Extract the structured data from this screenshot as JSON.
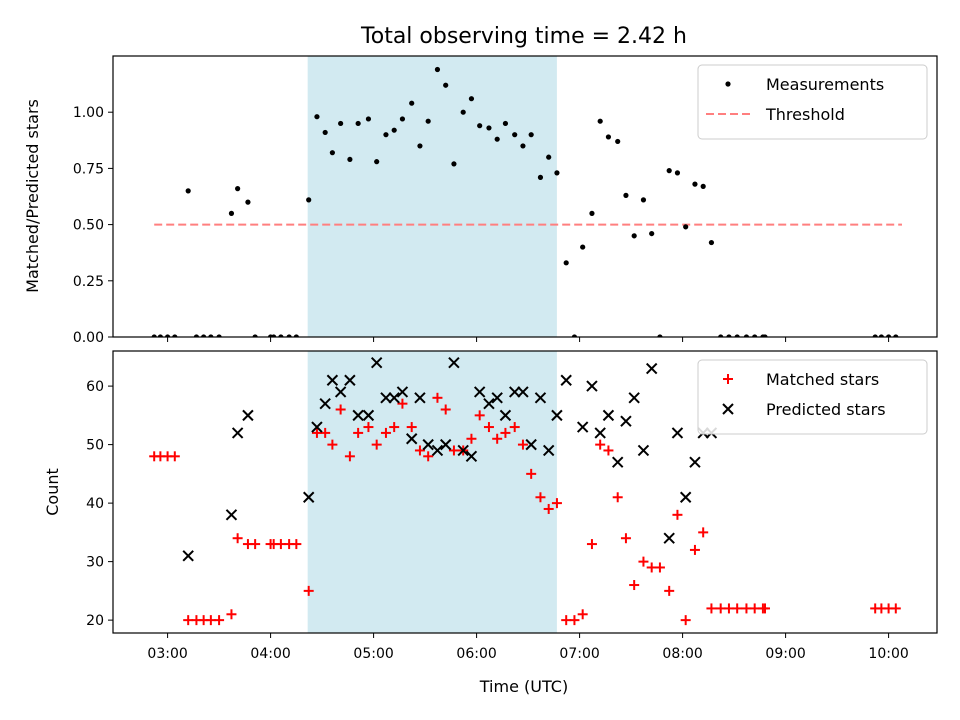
{
  "figure": {
    "title": "Total observing time = 2.42 h",
    "xlabel": "Time (UTC)",
    "x_ticks": [
      "03:00",
      "04:00",
      "05:00",
      "06:00",
      "07:00",
      "08:00",
      "09:00",
      "10:00"
    ],
    "x_tick_values": [
      3,
      4,
      5,
      6,
      7,
      8,
      9,
      10
    ],
    "xlim": [
      2.47,
      10.47
    ],
    "shaded_span": [
      4.36,
      6.78
    ],
    "shade_color": "#add8e6"
  },
  "chart_data": [
    {
      "type": "scatter",
      "ylabel": "Matched/Predicted stars",
      "ylim": [
        0,
        1.25
      ],
      "y_ticks": [
        "0.00",
        "0.25",
        "0.50",
        "0.75",
        "1.00"
      ],
      "y_tick_values": [
        0,
        0.25,
        0.5,
        0.75,
        1.0
      ],
      "legend_placement": "top-right",
      "threshold": {
        "name": "Threshold",
        "y": 0.5,
        "x_range": [
          2.87,
          10.13
        ],
        "color": "#ff7f7f"
      },
      "series": [
        {
          "name": "Measurements",
          "color": "#000000",
          "points": [
            [
              2.87,
              0
            ],
            [
              2.93,
              0
            ],
            [
              3.0,
              0
            ],
            [
              3.07,
              0
            ],
            [
              3.2,
              0.65
            ],
            [
              3.28,
              0
            ],
            [
              3.35,
              0
            ],
            [
              3.42,
              0
            ],
            [
              3.5,
              0
            ],
            [
              3.62,
              0.55
            ],
            [
              3.68,
              0.66
            ],
            [
              3.78,
              0.6
            ],
            [
              3.85,
              0
            ],
            [
              4.0,
              0
            ],
            [
              4.03,
              0
            ],
            [
              4.1,
              0
            ],
            [
              4.18,
              0
            ],
            [
              4.25,
              0
            ],
            [
              4.37,
              0.61
            ],
            [
              4.45,
              0.98
            ],
            [
              4.53,
              0.91
            ],
            [
              4.6,
              0.82
            ],
            [
              4.68,
              0.95
            ],
            [
              4.77,
              0.79
            ],
            [
              4.85,
              0.95
            ],
            [
              4.95,
              0.97
            ],
            [
              5.03,
              0.78
            ],
            [
              5.12,
              0.9
            ],
            [
              5.2,
              0.92
            ],
            [
              5.28,
              0.97
            ],
            [
              5.37,
              1.04
            ],
            [
              5.45,
              0.85
            ],
            [
              5.53,
              0.96
            ],
            [
              5.62,
              1.19
            ],
            [
              5.7,
              1.12
            ],
            [
              5.78,
              0.77
            ],
            [
              5.87,
              1.0
            ],
            [
              5.95,
              1.06
            ],
            [
              6.03,
              0.94
            ],
            [
              6.12,
              0.93
            ],
            [
              6.2,
              0.88
            ],
            [
              6.28,
              0.95
            ],
            [
              6.37,
              0.9
            ],
            [
              6.45,
              0.85
            ],
            [
              6.53,
              0.9
            ],
            [
              6.62,
              0.71
            ],
            [
              6.7,
              0.8
            ],
            [
              6.78,
              0.73
            ],
            [
              6.87,
              0.33
            ],
            [
              6.95,
              0
            ],
            [
              7.03,
              0.4
            ],
            [
              7.12,
              0.55
            ],
            [
              7.2,
              0.96
            ],
            [
              7.28,
              0.89
            ],
            [
              7.37,
              0.87
            ],
            [
              7.45,
              0.63
            ],
            [
              7.53,
              0.45
            ],
            [
              7.62,
              0.61
            ],
            [
              7.7,
              0.46
            ],
            [
              7.78,
              0
            ],
            [
              7.87,
              0.74
            ],
            [
              7.95,
              0.73
            ],
            [
              8.03,
              0.49
            ],
            [
              8.12,
              0.68
            ],
            [
              8.2,
              0.67
            ],
            [
              8.28,
              0.42
            ],
            [
              8.37,
              0
            ],
            [
              8.45,
              0
            ],
            [
              8.53,
              0
            ],
            [
              8.62,
              0
            ],
            [
              8.7,
              0
            ],
            [
              8.78,
              0
            ],
            [
              8.8,
              0
            ],
            [
              9.87,
              0
            ],
            [
              9.93,
              0
            ],
            [
              10.0,
              0
            ],
            [
              10.07,
              0
            ]
          ]
        }
      ]
    },
    {
      "type": "scatter",
      "ylabel": "Count",
      "ylim": [
        17.8,
        66
      ],
      "y_ticks": [
        "20",
        "30",
        "40",
        "50",
        "60"
      ],
      "y_tick_values": [
        20,
        30,
        40,
        50,
        60
      ],
      "legend_placement": "top-right",
      "series": [
        {
          "name": "Matched stars",
          "marker": "plus",
          "color": "#ff0000",
          "points": [
            [
              2.87,
              48
            ],
            [
              2.93,
              48
            ],
            [
              3.0,
              48
            ],
            [
              3.07,
              48
            ],
            [
              3.2,
              20
            ],
            [
              3.28,
              20
            ],
            [
              3.35,
              20
            ],
            [
              3.42,
              20
            ],
            [
              3.5,
              20
            ],
            [
              3.62,
              21
            ],
            [
              3.68,
              34
            ],
            [
              3.78,
              33
            ],
            [
              3.85,
              33
            ],
            [
              4.0,
              33
            ],
            [
              4.03,
              33
            ],
            [
              4.1,
              33
            ],
            [
              4.18,
              33
            ],
            [
              4.25,
              33
            ],
            [
              4.37,
              25
            ],
            [
              4.45,
              52
            ],
            [
              4.53,
              52
            ],
            [
              4.6,
              50
            ],
            [
              4.68,
              56
            ],
            [
              4.77,
              48
            ],
            [
              4.85,
              52
            ],
            [
              4.95,
              53
            ],
            [
              5.03,
              50
            ],
            [
              5.12,
              52
            ],
            [
              5.2,
              53
            ],
            [
              5.28,
              57
            ],
            [
              5.37,
              53
            ],
            [
              5.45,
              49
            ],
            [
              5.53,
              48
            ],
            [
              5.62,
              58
            ],
            [
              5.7,
              56
            ],
            [
              5.78,
              49
            ],
            [
              5.87,
              49
            ],
            [
              5.95,
              51
            ],
            [
              6.03,
              55
            ],
            [
              6.12,
              53
            ],
            [
              6.2,
              51
            ],
            [
              6.28,
              52
            ],
            [
              6.37,
              53
            ],
            [
              6.45,
              50
            ],
            [
              6.53,
              45
            ],
            [
              6.62,
              41
            ],
            [
              6.7,
              39
            ],
            [
              6.78,
              40
            ],
            [
              6.87,
              20
            ],
            [
              6.95,
              20
            ],
            [
              7.03,
              21
            ],
            [
              7.12,
              33
            ],
            [
              7.2,
              50
            ],
            [
              7.28,
              49
            ],
            [
              7.37,
              41
            ],
            [
              7.45,
              34
            ],
            [
              7.53,
              26
            ],
            [
              7.62,
              30
            ],
            [
              7.7,
              29
            ],
            [
              7.78,
              29
            ],
            [
              7.87,
              25
            ],
            [
              7.95,
              38
            ],
            [
              8.03,
              20
            ],
            [
              8.12,
              32
            ],
            [
              8.2,
              35
            ],
            [
              8.28,
              22
            ],
            [
              8.37,
              22
            ],
            [
              8.45,
              22
            ],
            [
              8.53,
              22
            ],
            [
              8.62,
              22
            ],
            [
              8.7,
              22
            ],
            [
              8.78,
              22
            ],
            [
              8.8,
              22
            ],
            [
              9.87,
              22
            ],
            [
              9.93,
              22
            ],
            [
              10.0,
              22
            ],
            [
              10.07,
              22
            ]
          ]
        },
        {
          "name": "Predicted stars",
          "marker": "x",
          "color": "#000000",
          "points": [
            [
              3.2,
              31
            ],
            [
              3.62,
              38
            ],
            [
              3.68,
              52
            ],
            [
              3.78,
              55
            ],
            [
              4.37,
              41
            ],
            [
              4.45,
              53
            ],
            [
              4.53,
              57
            ],
            [
              4.6,
              61
            ],
            [
              4.68,
              59
            ],
            [
              4.77,
              61
            ],
            [
              4.85,
              55
            ],
            [
              4.95,
              55
            ],
            [
              5.03,
              64
            ],
            [
              5.12,
              58
            ],
            [
              5.2,
              58
            ],
            [
              5.28,
              59
            ],
            [
              5.37,
              51
            ],
            [
              5.45,
              58
            ],
            [
              5.53,
              50
            ],
            [
              5.62,
              49
            ],
            [
              5.7,
              50
            ],
            [
              5.78,
              64
            ],
            [
              5.87,
              49
            ],
            [
              5.95,
              48
            ],
            [
              6.03,
              59
            ],
            [
              6.12,
              57
            ],
            [
              6.2,
              58
            ],
            [
              6.28,
              55
            ],
            [
              6.37,
              59
            ],
            [
              6.45,
              59
            ],
            [
              6.53,
              50
            ],
            [
              6.62,
              58
            ],
            [
              6.7,
              49
            ],
            [
              6.78,
              55
            ],
            [
              6.87,
              61
            ],
            [
              7.03,
              53
            ],
            [
              7.12,
              60
            ],
            [
              7.2,
              52
            ],
            [
              7.28,
              55
            ],
            [
              7.37,
              47
            ],
            [
              7.45,
              54
            ],
            [
              7.53,
              58
            ],
            [
              7.62,
              49
            ],
            [
              7.7,
              63
            ],
            [
              7.87,
              34
            ],
            [
              7.95,
              52
            ],
            [
              8.03,
              41
            ],
            [
              8.12,
              47
            ],
            [
              8.2,
              52
            ],
            [
              8.28,
              52
            ]
          ]
        }
      ]
    }
  ]
}
